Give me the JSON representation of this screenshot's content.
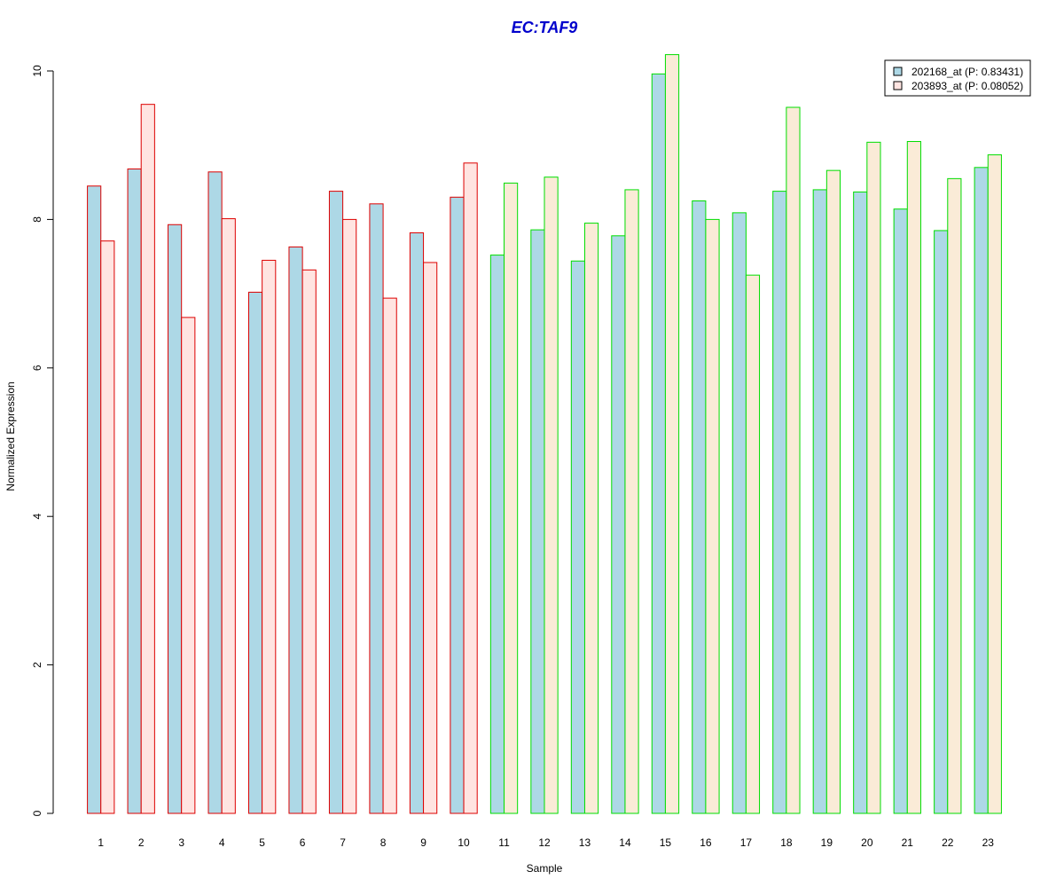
{
  "chart_data": {
    "type": "bar",
    "title": "EC:TAF9",
    "xlabel": "Sample",
    "ylabel": "Normalized Expression",
    "ylim": [
      0,
      10.2
    ],
    "yticks": [
      "0",
      "2",
      "4",
      "6",
      "8",
      "10"
    ],
    "grid": false,
    "legend_position": "top-right",
    "categories": [
      "1",
      "2",
      "3",
      "4",
      "5",
      "6",
      "7",
      "8",
      "9",
      "10",
      "11",
      "12",
      "13",
      "14",
      "15",
      "16",
      "17",
      "18",
      "19",
      "20",
      "21",
      "22",
      "23"
    ],
    "category_groups": [
      {
        "outline_color": "#dd0000",
        "members": [
          "1",
          "2",
          "3",
          "4",
          "5",
          "6",
          "7",
          "8",
          "9",
          "10"
        ]
      },
      {
        "outline_color": "#00dd00",
        "members": [
          "11",
          "12",
          "13",
          "14",
          "15",
          "16",
          "17",
          "18",
          "19",
          "20",
          "21",
          "22",
          "23"
        ]
      }
    ],
    "series": [
      {
        "name": "202168_at (P: 0.83431)",
        "fill": "#add8e6",
        "values": [
          8.45,
          8.68,
          7.93,
          8.64,
          7.02,
          7.63,
          8.38,
          8.21,
          7.82,
          8.3,
          7.52,
          7.86,
          7.44,
          7.78,
          9.96,
          8.25,
          8.09,
          8.38,
          8.4,
          8.37,
          8.14,
          7.85,
          8.7
        ]
      },
      {
        "name": "203893_at (P: 0.08052)",
        "fill_by_group": [
          "#ffe4e1",
          "#faebd7"
        ],
        "values": [
          7.71,
          9.55,
          6.68,
          8.01,
          7.45,
          7.32,
          8.0,
          6.94,
          7.42,
          8.76,
          8.49,
          8.57,
          7.95,
          8.4,
          10.22,
          8.0,
          7.25,
          9.51,
          8.66,
          9.04,
          9.05,
          8.55,
          8.87
        ]
      }
    ]
  }
}
